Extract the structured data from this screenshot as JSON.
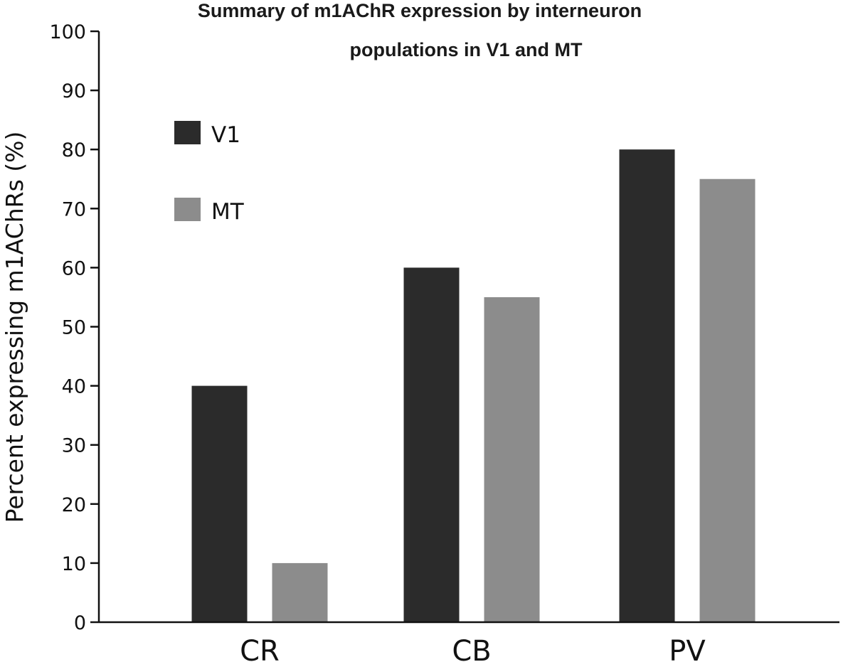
{
  "chart_data": {
    "type": "bar",
    "title": "Summary of m1AChR expression by interneuron populations in V1 and MT",
    "title_lines": [
      "Summary of m1AChR expression by interneuron",
      "populations in V1 and MT"
    ],
    "xlabel": "",
    "ylabel": "Percent expressing m1AChRs (%)",
    "categories": [
      "CR",
      "CB",
      "PV"
    ],
    "series": [
      {
        "name": "V1",
        "color": "#2b2b2b",
        "values": [
          40,
          60,
          80
        ]
      },
      {
        "name": "MT",
        "color": "#8c8c8c",
        "values": [
          10,
          55,
          75
        ]
      }
    ],
    "ylim": [
      0,
      100
    ],
    "yticks": [
      0,
      10,
      20,
      30,
      40,
      50,
      60,
      70,
      80,
      90,
      100
    ],
    "grid": false,
    "legend_position": "top-left"
  }
}
